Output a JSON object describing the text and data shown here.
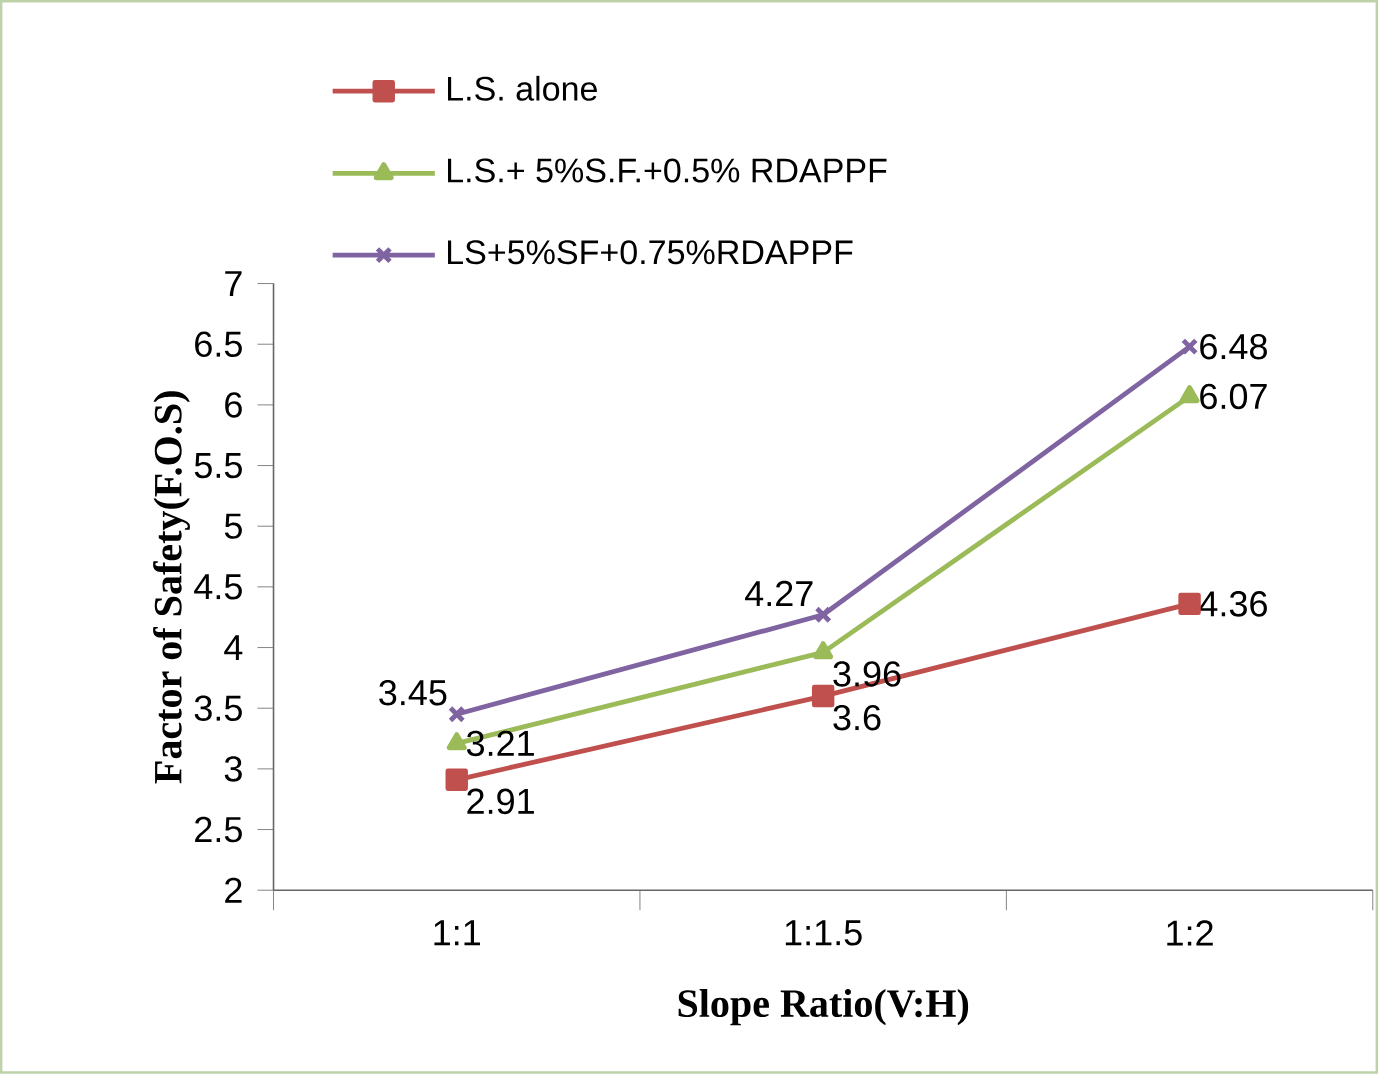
{
  "chart_data": {
    "type": "line",
    "xlabel": "Slope Ratio(V:H)",
    "ylabel": "Factor of Safety(F.O.S)",
    "categories": [
      "1:1",
      "1:1.5",
      "1:2"
    ],
    "series": [
      {
        "name": "L.S. alone",
        "color": "#c0504d",
        "marker": "square",
        "values": [
          2.91,
          3.6,
          4.36
        ]
      },
      {
        "name": "L.S.+ 5%S.F.+0.5% RDAPPF",
        "color": "#9bbb59",
        "marker": "triangle",
        "values": [
          3.21,
          3.96,
          6.07
        ]
      },
      {
        "name": "LS+5%SF+0.75%RDAPPF",
        "color": "#8064a2",
        "marker": "cross",
        "values": [
          3.45,
          4.27,
          6.48
        ]
      }
    ],
    "ylim": [
      2,
      7
    ],
    "yticks": [
      2,
      2.5,
      3,
      3.5,
      4,
      4.5,
      5,
      5.5,
      6,
      6.5,
      7
    ],
    "data_labels": true,
    "legend": "top left",
    "grid": false,
    "line_style": "solid"
  }
}
